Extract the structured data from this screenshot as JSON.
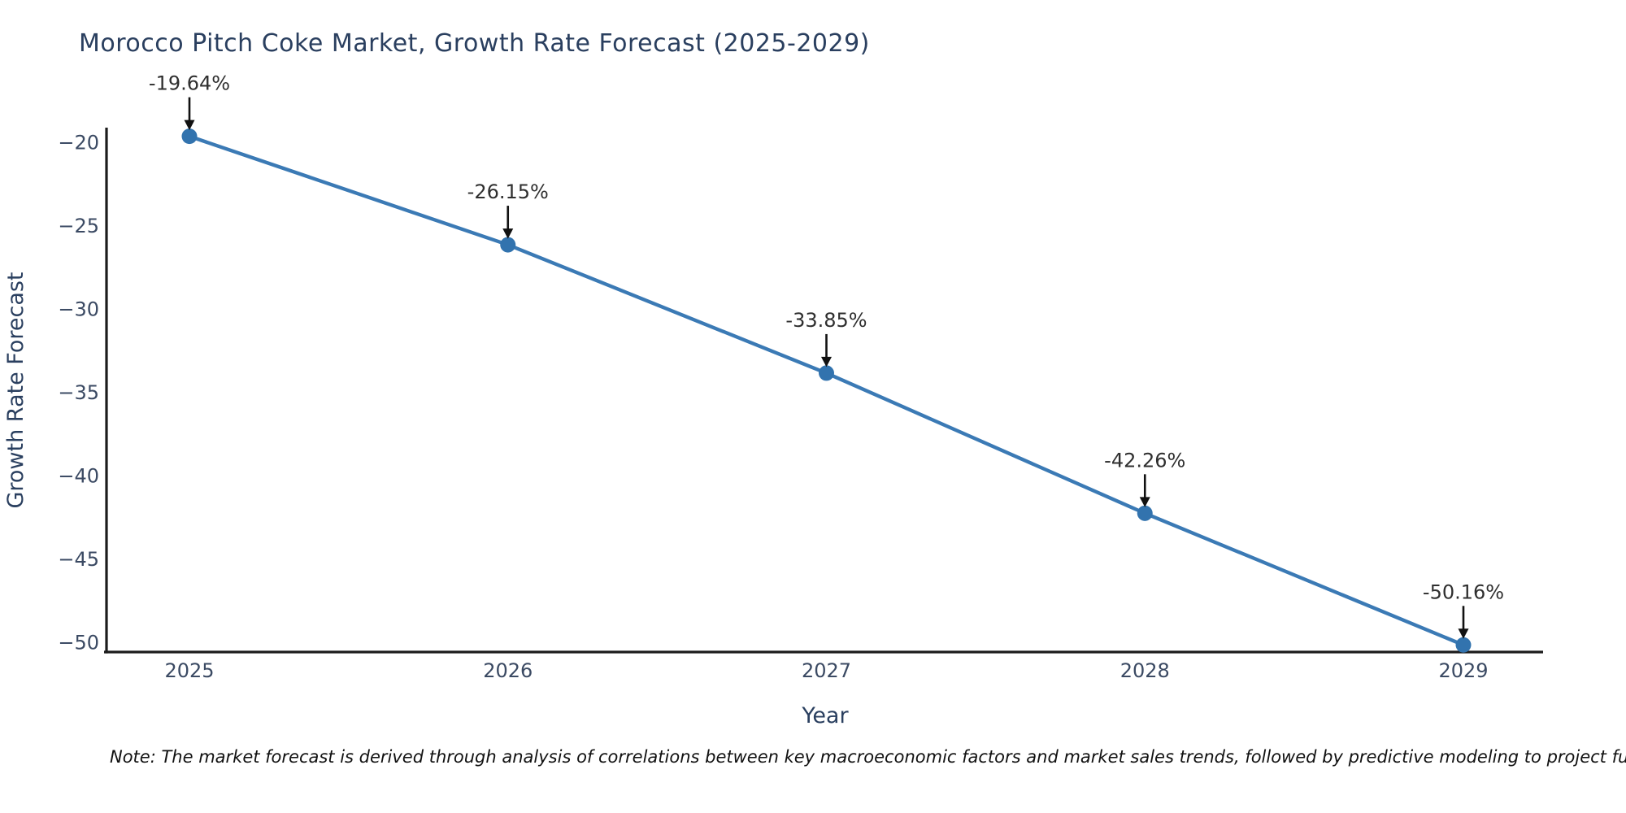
{
  "title": "Morocco Pitch Coke Market, Growth Rate Forecast (2025-2029)",
  "note": "Note: The market forecast is derived through analysis of correlations between key macroeconomic factors and market sales trends, followed by predictive modeling to project future sales",
  "chart_data": {
    "type": "line",
    "title": "Morocco Pitch Coke Market, Growth Rate Forecast (2025-2029)",
    "xlabel": "Year",
    "ylabel": "Growth Rate Forecast",
    "x": [
      2025,
      2026,
      2027,
      2028,
      2029
    ],
    "x_tick_labels": [
      "2025",
      "2026",
      "2027",
      "2028",
      "2029"
    ],
    "series": [
      {
        "name": "Growth Rate Forecast",
        "values": [
          -19.64,
          -26.15,
          -33.85,
          -42.26,
          -50.16
        ],
        "point_labels": [
          "-19.64%",
          "-26.15%",
          "-33.85%",
          "-42.26%",
          "-50.16%"
        ]
      }
    ],
    "y_ticks": [
      -20,
      -25,
      -30,
      -35,
      -40,
      -45,
      -50
    ],
    "y_tick_labels": [
      "−20",
      "−25",
      "−30",
      "−35",
      "−40",
      "−45",
      "−50"
    ],
    "ylim": [
      -50.6,
      -19.1
    ],
    "grid": false,
    "legend": "none",
    "annotations_have_arrows": true,
    "colors": {
      "line": "#3b7ab5",
      "marker": "#3273ae",
      "axis": "#1c1c1c",
      "tick_text": "#3b4a63",
      "title_text": "#2a3f5f",
      "annotation_text": "#2f2f2f",
      "arrow": "#111111",
      "background": "#ffffff"
    }
  }
}
